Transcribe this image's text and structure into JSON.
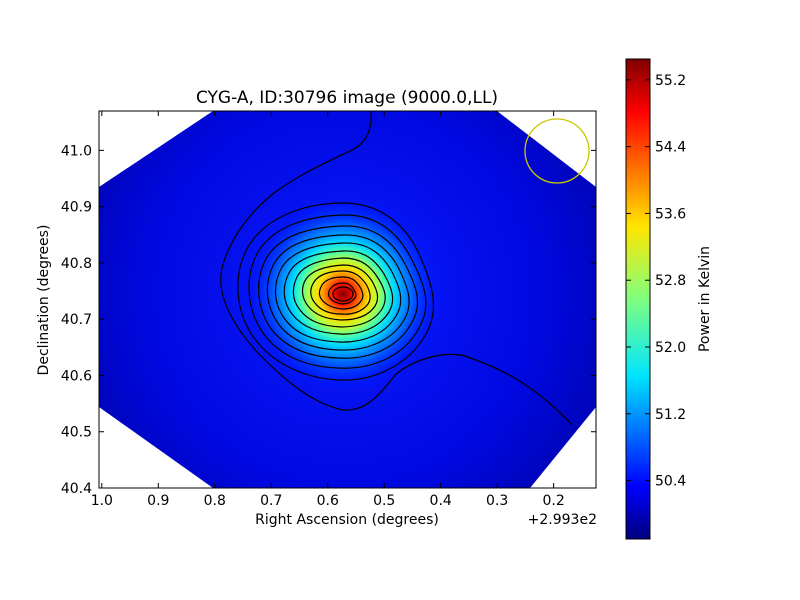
{
  "chart_data": [
    {
      "type": "heatmap",
      "title": "CYG-A, ID:30796 image (9000.0,LL)",
      "xlabel": "Right Ascension (degrees)",
      "ylabel": "Declination (degrees)",
      "x_offset_label": "+2.993e2",
      "x_offset": 299.3,
      "x_ticks": [
        1.0,
        0.9,
        0.8,
        0.7,
        0.6,
        0.5,
        0.4,
        0.3,
        0.2
      ],
      "x_tick_labels": [
        "1.0",
        "0.9",
        "0.8",
        "0.7",
        "0.6",
        "0.5",
        "0.4",
        "0.3",
        "0.2"
      ],
      "y_ticks": [
        40.4,
        40.5,
        40.6,
        40.7,
        40.8,
        40.9,
        41.0
      ],
      "y_tick_labels": [
        "40.4",
        "40.5",
        "40.6",
        "40.7",
        "40.8",
        "40.9",
        "41.0"
      ],
      "xlim": [
        1.005,
        0.125
      ],
      "ylim": [
        40.4,
        41.07
      ],
      "x_axis_inverted": true,
      "colormap": "jet",
      "peak": {
        "ra_offset": 0.575,
        "dec": 40.745
      },
      "beam_circle": {
        "ra_offset": 0.2,
        "dec": 40.995,
        "color": "#c8c800"
      },
      "contour_color": "#000000",
      "grid": false
    },
    {
      "type": "colorbar",
      "label": "Power in Kelvin",
      "range": [
        49.7,
        55.45
      ],
      "ticks": [
        50.4,
        51.2,
        52.0,
        52.8,
        53.6,
        54.4,
        55.2
      ],
      "tick_labels": [
        "50.4",
        "51.2",
        "52.0",
        "52.8",
        "53.6",
        "54.4",
        "55.2"
      ],
      "colormap": "jet"
    }
  ]
}
